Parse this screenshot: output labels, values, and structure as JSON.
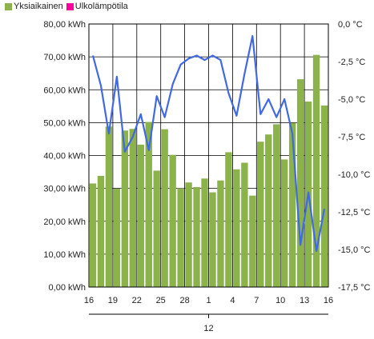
{
  "legend": {
    "items": [
      {
        "label": "Yksiaikainen",
        "color": "#8bb34a"
      },
      {
        "label": "Ulkolämpötila",
        "color": "#ff00a0"
      }
    ]
  },
  "chart_data": {
    "type": "bar",
    "title": "",
    "xlabel": "",
    "ylabel": "",
    "x_ticks": [
      "16",
      "19",
      "22",
      "25",
      "28",
      "1",
      "4",
      "7",
      "10",
      "13",
      "16"
    ],
    "x_group_label": "12",
    "y_left": {
      "min": 0,
      "max": 80,
      "step": 10,
      "tick_labels": [
        "0,00 kWh",
        "10,00 kWh",
        "20,00 kWh",
        "30,00 kWh",
        "40,00 kWh",
        "50,00 kWh",
        "60,00 kWh",
        "70,00 kWh",
        "80,00 kWh"
      ]
    },
    "y_right": {
      "min": -17.5,
      "max": 0,
      "step": 2.5,
      "tick_labels": [
        "-17,5 °C",
        "-15,0 °C",
        "-12,5 °C",
        "-10,0 °C",
        "-7,5 °C",
        "-5,0 °C",
        "-2,5 °C",
        "0,0 °C"
      ]
    },
    "bar_color": "#8bb34a",
    "line_color": "#4169e1",
    "grid": true,
    "series": [
      {
        "name": "Yksiaikainen",
        "type": "bar",
        "axis": "left",
        "values": [
          31.5,
          33.8,
          48.8,
          29.9,
          47.6,
          48.1,
          43.3,
          50.2,
          35.4,
          48.0,
          40.2,
          30.0,
          31.8,
          30.4,
          33.0,
          28.8,
          32.4,
          41.0,
          35.8,
          37.8,
          27.8,
          44.2,
          46.4,
          49.5,
          38.8,
          49.9,
          63.2,
          56.4,
          70.6,
          55.2
        ]
      },
      {
        "name": "Ulkolämpötila",
        "type": "line",
        "axis": "right",
        "values": [
          -2.1,
          -4.1,
          -7.3,
          -3.5,
          -8.5,
          -7.5,
          -6.0,
          -8.4,
          -4.8,
          -6.2,
          -4.0,
          -2.7,
          -2.3,
          -2.1,
          -2.4,
          -2.1,
          -2.4,
          -4.6,
          -6.1,
          -3.3,
          -0.8,
          -6.0,
          -5.0,
          -6.2,
          -5.0,
          -7.3,
          -14.7,
          -11.2,
          -15.1,
          -12.3
        ]
      }
    ]
  }
}
